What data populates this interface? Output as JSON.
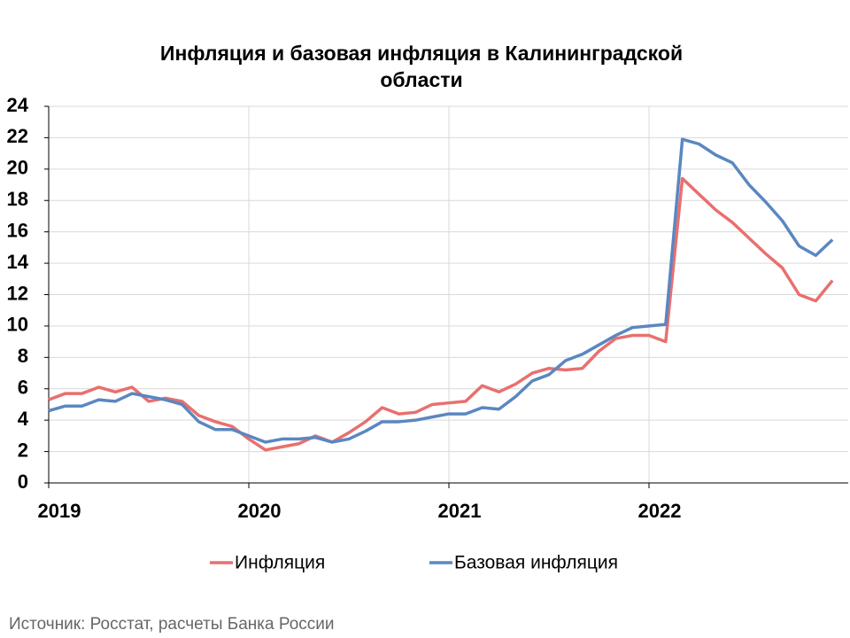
{
  "chart_data": {
    "type": "line",
    "title": [
      "Инфляция и базовая инфляция в Калининградской",
      "области"
    ],
    "source": "Источник: Росстат, расчеты Банка России",
    "x": [
      0,
      1,
      2,
      3,
      4,
      5,
      6,
      7,
      8,
      9,
      10,
      11,
      12,
      13,
      14,
      15,
      16,
      17,
      18,
      19,
      20,
      21,
      22,
      23,
      24,
      25,
      26,
      27,
      28,
      29,
      30,
      31,
      32,
      33,
      34,
      35,
      36,
      37,
      38,
      39,
      40,
      41,
      42,
      43,
      44,
      45,
      46,
      47
    ],
    "xlim": [
      0,
      48
    ],
    "xticks": [
      {
        "value": 0,
        "label": "2019"
      },
      {
        "value": 12,
        "label": "2020"
      },
      {
        "value": 24,
        "label": "2021"
      },
      {
        "value": 36,
        "label": "2022"
      }
    ],
    "ylim": [
      0,
      24
    ],
    "yticks": [
      0,
      2,
      4,
      6,
      8,
      10,
      12,
      14,
      16,
      18,
      20,
      22,
      24
    ],
    "grid": true,
    "legend": "bottom",
    "series": [
      {
        "name": "Инфляция",
        "color": "#e8706f",
        "values": [
          5.3,
          5.7,
          5.7,
          6.1,
          5.8,
          6.1,
          5.2,
          5.4,
          5.2,
          4.3,
          3.9,
          3.6,
          2.8,
          2.1,
          2.3,
          2.5,
          3.0,
          2.6,
          3.2,
          3.9,
          4.8,
          4.4,
          4.5,
          5.0,
          5.1,
          5.2,
          6.2,
          5.8,
          6.3,
          7.0,
          7.3,
          7.2,
          7.3,
          8.4,
          9.2,
          9.4,
          9.4,
          9.0,
          19.4,
          18.4,
          17.4,
          16.6,
          15.6,
          14.6,
          13.7,
          12.0,
          11.6,
          12.9
        ]
      },
      {
        "name": "Базовая инфляция",
        "color": "#5b87c0",
        "values": [
          4.6,
          4.9,
          4.9,
          5.3,
          5.2,
          5.7,
          5.5,
          5.3,
          5.0,
          3.9,
          3.4,
          3.4,
          3.0,
          2.6,
          2.8,
          2.8,
          2.9,
          2.6,
          2.8,
          3.3,
          3.9,
          3.9,
          4.0,
          4.2,
          4.4,
          4.4,
          4.8,
          4.7,
          5.5,
          6.5,
          6.9,
          7.8,
          8.2,
          8.8,
          9.4,
          9.9,
          10.0,
          10.1,
          21.9,
          21.6,
          20.9,
          20.4,
          19.0,
          17.9,
          16.7,
          15.1,
          14.5,
          15.5
        ]
      }
    ]
  }
}
